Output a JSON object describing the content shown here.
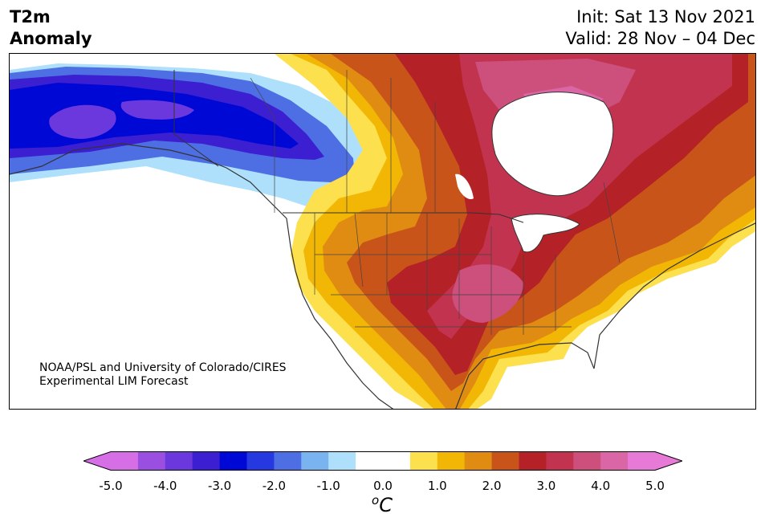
{
  "title": {
    "variable": "T2m",
    "subtitle": "Anomaly",
    "init": "Init: Sat 13 Nov 2021",
    "valid": "Valid: 28 Nov – 04 Dec"
  },
  "credit": {
    "line1": "NOAA/PSL and University of Colorado/CIRES",
    "line2": "Experimental LIM Forecast"
  },
  "colorbar": {
    "ticks": [
      "-5.0",
      "-4.0",
      "-3.0",
      "-2.0",
      "-1.0",
      "0.0",
      "1.0",
      "2.0",
      "3.0",
      "4.0",
      "5.0"
    ],
    "unit_base": "C",
    "unit_sup": "o",
    "colors": [
      "#d66fe6",
      "#9b4fe0",
      "#6a38dc",
      "#3c1fd0",
      "#0008d6",
      "#2638e0",
      "#4e6fe4",
      "#7ab4f0",
      "#aee0fb",
      "#ffffff",
      "#ffffff",
      "#fde04e",
      "#f2b705",
      "#e08c12",
      "#c9541a",
      "#b42126",
      "#c2334f",
      "#cc4f7c",
      "#da66a6",
      "#e67ad6"
    ],
    "extend_min_color": "#d66fe6",
    "extend_max_color": "#e67ad6"
  },
  "map": {
    "region": "North America",
    "palette": {
      "blue_deep": "#0008d6",
      "blue_mid": "#3c1fd0",
      "blue_light": "#4e6fe4",
      "blue_pale": "#aee0fb",
      "yellow": "#fde04e",
      "gold": "#f2b705",
      "orange": "#e08c12",
      "dark_orange": "#c9541a",
      "red": "#b42126",
      "crimson": "#c2334f",
      "pink": "#cc4f7c",
      "magenta": "#da66a6"
    }
  }
}
